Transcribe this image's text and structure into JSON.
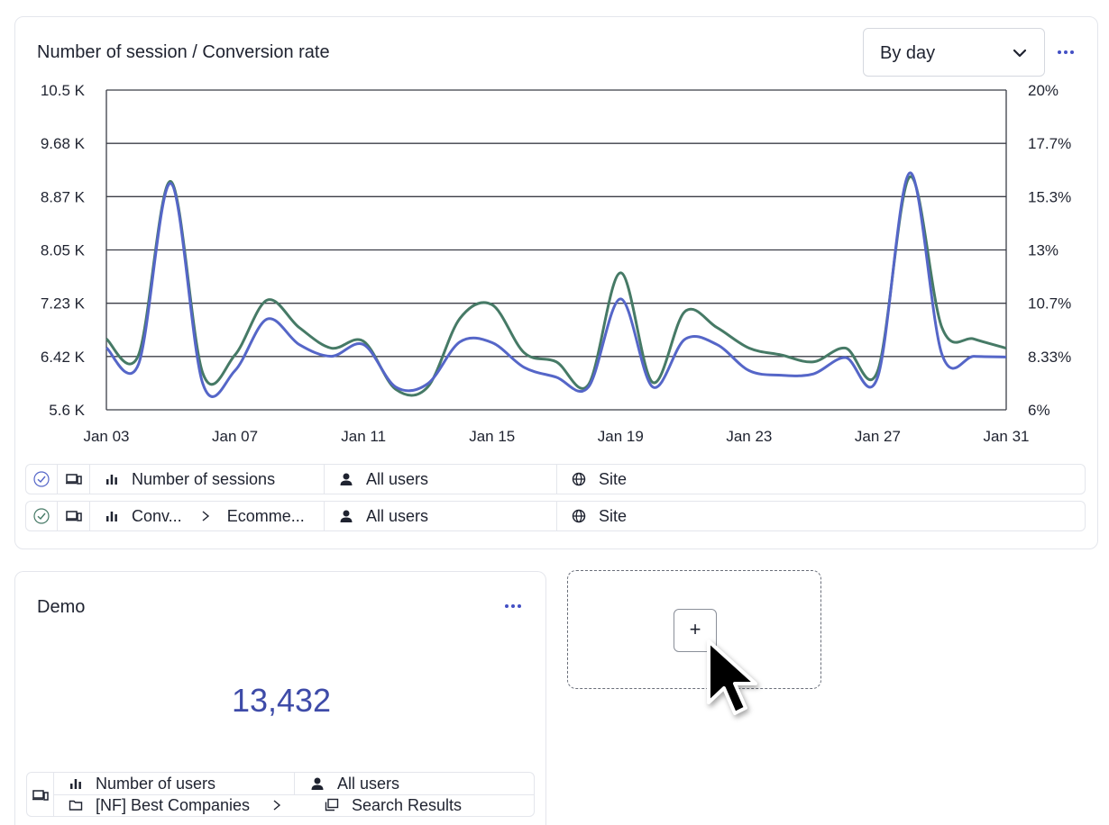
{
  "main_card": {
    "title": "Number of session / Conversion rate",
    "granularity_select": {
      "value": "By day"
    },
    "more_icon": "more-horizontal-icon"
  },
  "chart_data": {
    "type": "line",
    "title": "Number of session / Conversion rate",
    "x": [
      "Jan 03",
      "Jan 04",
      "Jan 05",
      "Jan 06",
      "Jan 07",
      "Jan 08",
      "Jan 09",
      "Jan 10",
      "Jan 11",
      "Jan 12",
      "Jan 13",
      "Jan 14",
      "Jan 15",
      "Jan 16",
      "Jan 17",
      "Jan 18",
      "Jan 19",
      "Jan 20",
      "Jan 21",
      "Jan 22",
      "Jan 23",
      "Jan 24",
      "Jan 25",
      "Jan 26",
      "Jan 27",
      "Jan 28",
      "Jan 29",
      "Jan 30",
      "Jan 31"
    ],
    "x_ticks": [
      "Jan 03",
      "Jan 07",
      "Jan 11",
      "Jan 15",
      "Jan 19",
      "Jan 23",
      "Jan 27",
      "Jan 31"
    ],
    "y_left": {
      "ticks": [
        "5.6 K",
        "6.42 K",
        "7.23 K",
        "8.05 K",
        "8.87 K",
        "9.68 K",
        "10.5 K"
      ],
      "min": 5600,
      "max": 10500
    },
    "y_right": {
      "ticks": [
        "6%",
        "8.33%",
        "10.7%",
        "13%",
        "15.3%",
        "17.7%",
        "20%"
      ],
      "min": 6,
      "max": 20
    },
    "grid": "horizontal",
    "series": [
      {
        "name": "Number of sessions",
        "axis": "left",
        "color": "#5566c8",
        "values": [
          6550,
          6300,
          9070,
          6000,
          6200,
          6990,
          6600,
          6420,
          6600,
          5950,
          6000,
          6640,
          6630,
          6250,
          6100,
          5950,
          7300,
          5950,
          6680,
          6600,
          6200,
          6130,
          6150,
          6400,
          6100,
          9230,
          6450,
          6420,
          6410
        ]
      },
      {
        "name": "Conversion rate",
        "axis": "right",
        "color": "#467a66",
        "values": [
          9.1,
          8.4,
          16.0,
          7.6,
          8.4,
          10.8,
          9.6,
          8.7,
          9.0,
          6.9,
          7.0,
          10.0,
          10.6,
          8.5,
          8.1,
          7.1,
          12.0,
          7.2,
          10.3,
          9.6,
          8.7,
          8.4,
          8.1,
          8.7,
          7.7,
          16.2,
          9.6,
          9.1,
          8.7
        ]
      }
    ]
  },
  "metric_rows": [
    {
      "check_color": "#5566c8",
      "metric": "Number of sessions",
      "metric_sub": "",
      "segment": "All users",
      "scope": "Site"
    },
    {
      "check_color": "#467a66",
      "metric": "Conv...",
      "metric_sub": "Ecomme...",
      "segment": "All users",
      "scope": "Site"
    }
  ],
  "demo_card": {
    "title": "Demo",
    "value": "13,432",
    "metric": "Number of users",
    "segment": "All users",
    "folder": "[NF] Best Companies",
    "page": "Search Results"
  },
  "add_card": {
    "button_label": "+"
  }
}
